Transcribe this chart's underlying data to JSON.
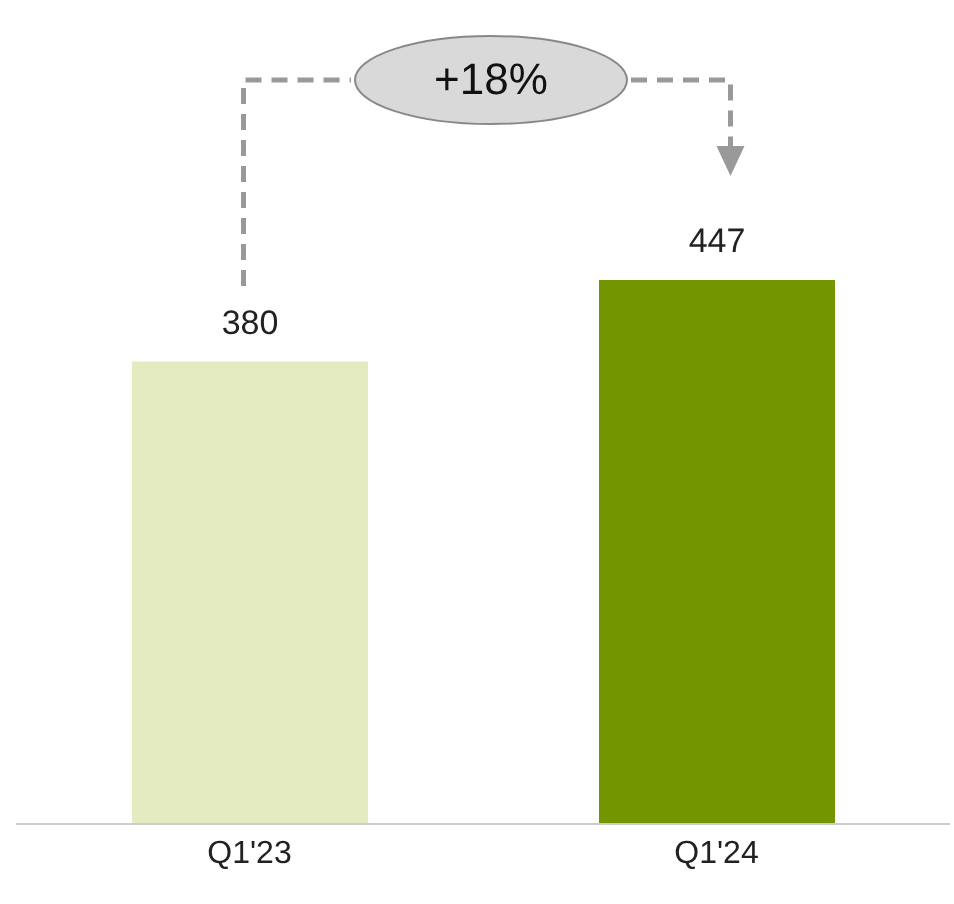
{
  "chart_data": {
    "type": "bar",
    "categories": [
      "Q1'23",
      "Q1'24"
    ],
    "values": [
      380,
      447
    ],
    "colors": [
      "#e4ebc0",
      "#739500"
    ],
    "data_labels": true,
    "annotations": [
      "+18%"
    ]
  }
}
